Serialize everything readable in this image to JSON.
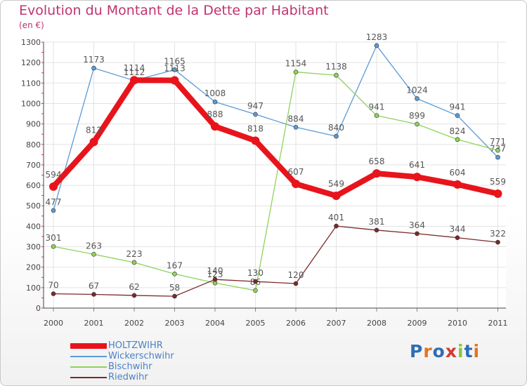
{
  "title": "Evolution du Montant de la Dette par Habitant",
  "unit_label": "(en €)",
  "logo": {
    "text": "Proxiti",
    "colors": [
      "#2f6db5",
      "#e0751f",
      "#2f6db5",
      "#d63a2f",
      "#8cc63f",
      "#2f6db5",
      "#e0751f"
    ]
  },
  "chart_data": {
    "type": "line",
    "x": [
      "2000",
      "2001",
      "2002",
      "2003",
      "2004",
      "2005",
      "2006",
      "2007",
      "2008",
      "2009",
      "2010",
      "2011"
    ],
    "ylim": [
      0,
      1300
    ],
    "yticks": [
      0,
      100,
      200,
      300,
      400,
      500,
      600,
      700,
      800,
      900,
      1000,
      1100,
      1200,
      1300
    ],
    "grid": true,
    "legend_position": "bottom-left",
    "series": [
      {
        "name": "Wickerschwihr",
        "color": "#5b9bd5",
        "values": [
          477,
          1173,
          1112,
          1165,
          1008,
          947,
          884,
          840,
          1283,
          1024,
          941,
          737
        ]
      },
      {
        "name": "Bischwihr",
        "color": "#8fd35a",
        "values": [
          301,
          263,
          223,
          167,
          123,
          86,
          1154,
          1138,
          941,
          899,
          824,
          771
        ]
      },
      {
        "name": "Riedwihr",
        "color": "#7a2a2a",
        "values": [
          70,
          67,
          62,
          58,
          140,
          130,
          120,
          401,
          381,
          364,
          344,
          322
        ]
      },
      {
        "name": "HOLTZWIHR",
        "color": "#e8141c",
        "values": [
          594,
          812,
          1114,
          1113,
          888,
          818,
          607,
          549,
          658,
          641,
          604,
          559
        ]
      }
    ]
  }
}
